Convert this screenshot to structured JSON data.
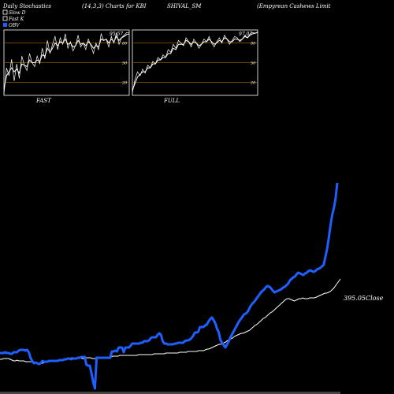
{
  "header": {
    "title": "Daily Stochastics",
    "subtitle": "(14,3,3) Charts for KBI",
    "symbol": "SHIVAL_SM",
    "company": "(Empyrean  Cashews Limit"
  },
  "legend": [
    {
      "label": "Slow  D",
      "color": "#ffffff",
      "swatch": "outline"
    },
    {
      "label": "Fast  K",
      "color": "#ffffff",
      "swatch": "outline"
    },
    {
      "label": "OBV",
      "color": "#1f5fff",
      "swatch": "fill"
    }
  ],
  "colors": {
    "background": "#000000",
    "obv": "#1f5fff",
    "close": "#ffffff",
    "grid": "#8b5a00",
    "panel_border": "#ffffff"
  },
  "chart_data": [
    {
      "type": "line",
      "panel": "fast",
      "label": "FAST",
      "value_label": "95.57",
      "ylim": [
        0,
        100
      ],
      "grid_levels": [
        20,
        50,
        80
      ],
      "tick_labels": [
        "80",
        "50",
        "20"
      ],
      "series": [
        {
          "name": "Fast  K",
          "values": [
            2,
            42,
            30,
            55,
            22,
            48,
            26,
            60,
            46,
            38,
            64,
            50,
            44,
            60,
            48,
            72,
            56,
            84,
            64,
            78,
            90,
            70,
            88,
            78,
            94,
            72,
            82,
            68,
            76,
            92,
            74,
            80,
            70,
            86,
            76,
            64,
            80,
            70,
            94,
            84,
            86,
            74,
            90,
            80,
            96,
            78,
            88,
            92,
            96,
            95.57
          ]
        },
        {
          "name": "Slow  D",
          "values": [
            10,
            30,
            36,
            42,
            36,
            40,
            34,
            48,
            46,
            44,
            54,
            50,
            50,
            54,
            52,
            62,
            60,
            72,
            66,
            72,
            80,
            76,
            82,
            80,
            86,
            78,
            80,
            74,
            76,
            84,
            78,
            80,
            76,
            82,
            78,
            72,
            76,
            74,
            86,
            84,
            86,
            80,
            86,
            82,
            90,
            84,
            88,
            90,
            93,
            94
          ]
        }
      ]
    },
    {
      "type": "line",
      "panel": "full",
      "label": "FULL",
      "value_label": "97.07",
      "ylim": [
        0,
        100
      ],
      "grid_levels": [
        20,
        50,
        80
      ],
      "tick_labels": [
        "80",
        "50",
        "20"
      ],
      "series": [
        {
          "name": "Fast  K",
          "values": [
            4,
            24,
            36,
            30,
            40,
            34,
            46,
            42,
            52,
            48,
            58,
            54,
            62,
            58,
            70,
            66,
            78,
            72,
            84,
            80,
            76,
            88,
            82,
            74,
            86,
            80,
            72,
            78,
            86,
            82,
            90,
            80,
            74,
            82,
            88,
            80,
            92,
            86,
            78,
            84,
            90,
            88,
            82,
            86,
            92,
            88,
            94,
            96,
            95,
            97.07
          ]
        },
        {
          "name": "Slow  D",
          "values": [
            8,
            18,
            28,
            32,
            36,
            36,
            42,
            42,
            48,
            48,
            54,
            54,
            58,
            58,
            64,
            64,
            72,
            70,
            78,
            78,
            78,
            84,
            82,
            78,
            82,
            80,
            76,
            78,
            82,
            82,
            86,
            82,
            78,
            80,
            84,
            82,
            88,
            86,
            82,
            82,
            86,
            86,
            84,
            86,
            90,
            88,
            92,
            94,
            95,
            96
          ]
        }
      ]
    },
    {
      "type": "line",
      "panel": "price",
      "close_label": "395.05Close",
      "series": [
        {
          "name": "OBV",
          "values": [
            48,
            48,
            48,
            49,
            48,
            48,
            47,
            47,
            49,
            49,
            49,
            51,
            52,
            52,
            52,
            51,
            52,
            49,
            42,
            38,
            35,
            36,
            35,
            34,
            35,
            38,
            37,
            37,
            37,
            38,
            38,
            38,
            38,
            38,
            38,
            39,
            39,
            39,
            40,
            40,
            41,
            41,
            40,
            41,
            41,
            41,
            42,
            42,
            43,
            43,
            43,
            33,
            32,
            32,
            22,
            11,
            3,
            42,
            42,
            42,
            42,
            42,
            42,
            42,
            42,
            42,
            50,
            50,
            51,
            50,
            55,
            55,
            55,
            49,
            55,
            55,
            55,
            57,
            60,
            60,
            60,
            60,
            60,
            61,
            61,
            63,
            63,
            63,
            64,
            67,
            68,
            68,
            68,
            71,
            73,
            71,
            63,
            60,
            60,
            59,
            59,
            59,
            59,
            60,
            60,
            61,
            61,
            61,
            61,
            63,
            64,
            64,
            65,
            67,
            70,
            74,
            74,
            75,
            81,
            81,
            81,
            83,
            84,
            88,
            91,
            93,
            90,
            86,
            79,
            75,
            65,
            61,
            58,
            55,
            59,
            63,
            68,
            72,
            76,
            80,
            84,
            88,
            91,
            94,
            97,
            98,
            100,
            104,
            108,
            111,
            113,
            116,
            119,
            122,
            125,
            127,
            129,
            132,
            133,
            132,
            130,
            127,
            125,
            126,
            127,
            128,
            129,
            131,
            132,
            134,
            136,
            140,
            142,
            144,
            145,
            148,
            150,
            149,
            148,
            147,
            149,
            150,
            152,
            153,
            152,
            151,
            152,
            154,
            155,
            156,
            158,
            160,
            170,
            180,
            194,
            210,
            223,
            232,
            244,
            264
          ]
        },
        {
          "name": "Close",
          "values": [
            40,
            40,
            41,
            41,
            41,
            41,
            40,
            39,
            38,
            38,
            39,
            38,
            38,
            38,
            38,
            37,
            37,
            37,
            37,
            37,
            36,
            35,
            35,
            35,
            35,
            35,
            36,
            37,
            38,
            38,
            38,
            38,
            38,
            38,
            39,
            39,
            40,
            40,
            40,
            40,
            41,
            41,
            42,
            42,
            42,
            42,
            42,
            42,
            41,
            41,
            42,
            42,
            42,
            42,
            41,
            41,
            41,
            42,
            42,
            42,
            43,
            43,
            43,
            43,
            43,
            43,
            44,
            44,
            44,
            44,
            45,
            45,
            45,
            45,
            45,
            45,
            45,
            45,
            45,
            45,
            45,
            46,
            46,
            46,
            46,
            46,
            46,
            46,
            46,
            46,
            47,
            47,
            47,
            47,
            47,
            47,
            47,
            48,
            48,
            48,
            48,
            48,
            48,
            48,
            48,
            49,
            49,
            49,
            49,
            49,
            50,
            50,
            50,
            50,
            50,
            50,
            51,
            51,
            51,
            51,
            52,
            53,
            53,
            54,
            55,
            56,
            57,
            58,
            59,
            59,
            60,
            61,
            62,
            64,
            65,
            66,
            67,
            69,
            70,
            71,
            72,
            73,
            73,
            74,
            75,
            76,
            77,
            79,
            81,
            83,
            84,
            86,
            88,
            90,
            92,
            93,
            95,
            97,
            99,
            100,
            102,
            104,
            106,
            108,
            110,
            112,
            114,
            116,
            117,
            117,
            116,
            115,
            114,
            115,
            116,
            117,
            117,
            118,
            117,
            117,
            117,
            118,
            118,
            118,
            118,
            119,
            120,
            121,
            122,
            123,
            124,
            124,
            125,
            126,
            128,
            130,
            133,
            136,
            139,
            142
          ]
        }
      ]
    }
  ]
}
